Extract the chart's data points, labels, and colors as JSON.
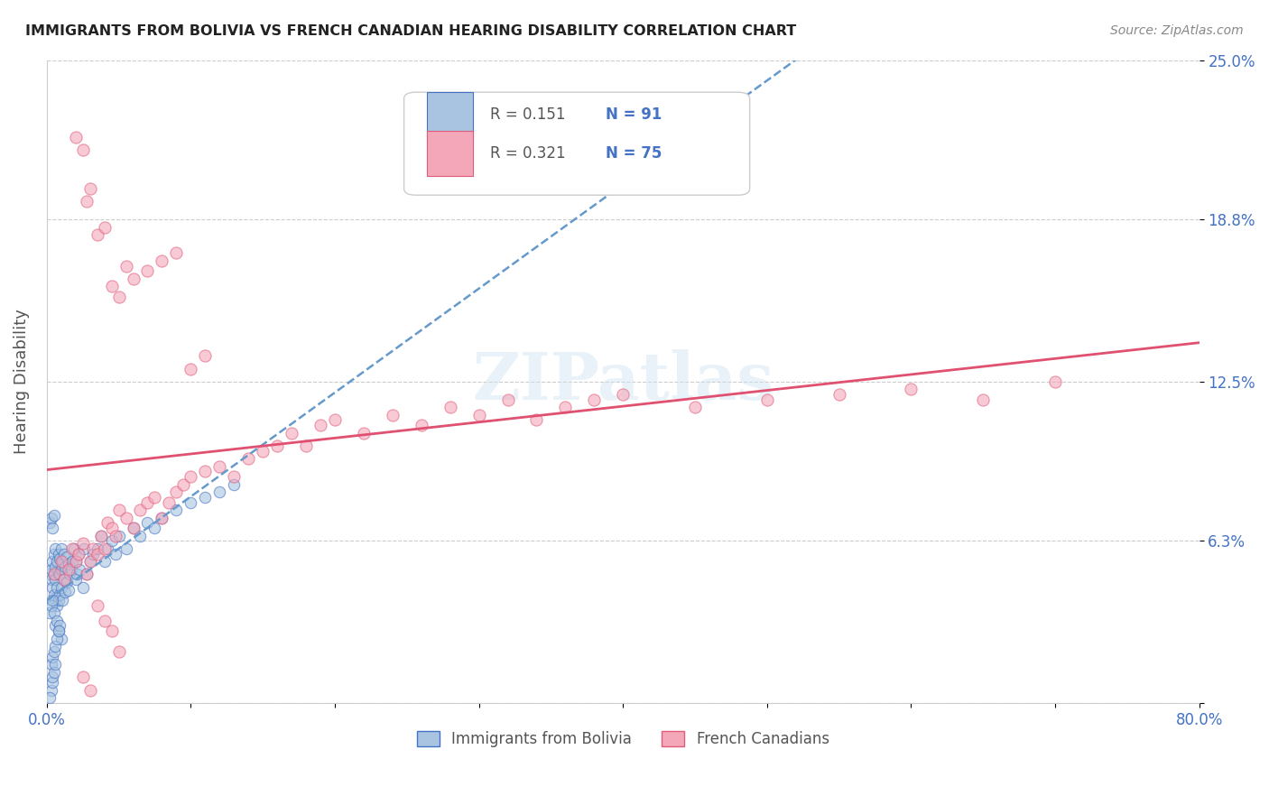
{
  "title": "IMMIGRANTS FROM BOLIVIA VS FRENCH CANADIAN HEARING DISABILITY CORRELATION CHART",
  "source": "Source: ZipAtlas.com",
  "xlabel": "",
  "ylabel": "Hearing Disability",
  "xlim": [
    0.0,
    0.8
  ],
  "ylim": [
    0.0,
    0.25
  ],
  "yticks": [
    0.0,
    0.063,
    0.125,
    0.188,
    0.25
  ],
  "ytick_labels": [
    "",
    "6.3%",
    "12.5%",
    "18.8%",
    "25.0%"
  ],
  "xticks": [
    0.0,
    0.1,
    0.2,
    0.3,
    0.4,
    0.5,
    0.6,
    0.7,
    0.8
  ],
  "xtick_labels": [
    "0.0%",
    "",
    "",
    "",
    "",
    "",
    "",
    "",
    "80.0%"
  ],
  "legend_r1": "R = 0.151",
  "legend_n1": "N = 91",
  "legend_r2": "R = 0.321",
  "legend_n2": "N = 75",
  "blue_color": "#a8c4e0",
  "blue_color_dark": "#4472c4",
  "pink_color": "#f4a7b9",
  "pink_color_dark": "#e05c7a",
  "trendline_blue": "#6699cc",
  "trendline_pink": "#e05070",
  "axis_label_color": "#4472c4",
  "tick_label_color": "#4472c4",
  "watermark": "ZIPatlas",
  "background_color": "#ffffff",
  "bolivia_x": [
    0.002,
    0.003,
    0.003,
    0.004,
    0.004,
    0.005,
    0.005,
    0.005,
    0.006,
    0.006,
    0.006,
    0.006,
    0.007,
    0.007,
    0.007,
    0.008,
    0.008,
    0.008,
    0.009,
    0.009,
    0.009,
    0.01,
    0.01,
    0.01,
    0.011,
    0.011,
    0.012,
    0.012,
    0.013,
    0.013,
    0.014,
    0.014,
    0.015,
    0.015,
    0.016,
    0.017,
    0.018,
    0.019,
    0.02,
    0.02,
    0.021,
    0.022,
    0.023,
    0.025,
    0.026,
    0.028,
    0.03,
    0.032,
    0.035,
    0.038,
    0.04,
    0.042,
    0.045,
    0.048,
    0.05,
    0.055,
    0.06,
    0.065,
    0.07,
    0.075,
    0.08,
    0.09,
    0.1,
    0.11,
    0.12,
    0.13,
    0.002,
    0.003,
    0.004,
    0.005,
    0.006,
    0.007,
    0.008,
    0.009,
    0.01,
    0.002,
    0.003,
    0.004,
    0.005,
    0.003,
    0.004,
    0.005,
    0.006,
    0.007,
    0.008,
    0.003,
    0.004,
    0.004,
    0.005,
    0.006,
    0.002
  ],
  "bolivia_y": [
    0.05,
    0.048,
    0.052,
    0.045,
    0.055,
    0.042,
    0.05,
    0.058,
    0.04,
    0.048,
    0.053,
    0.06,
    0.038,
    0.045,
    0.055,
    0.04,
    0.05,
    0.058,
    0.042,
    0.05,
    0.056,
    0.045,
    0.052,
    0.06,
    0.04,
    0.055,
    0.048,
    0.058,
    0.043,
    0.053,
    0.047,
    0.057,
    0.044,
    0.054,
    0.05,
    0.052,
    0.055,
    0.06,
    0.048,
    0.055,
    0.05,
    0.058,
    0.052,
    0.045,
    0.06,
    0.05,
    0.055,
    0.058,
    0.06,
    0.065,
    0.055,
    0.06,
    0.063,
    0.058,
    0.065,
    0.06,
    0.068,
    0.065,
    0.07,
    0.068,
    0.072,
    0.075,
    0.078,
    0.08,
    0.082,
    0.085,
    0.035,
    0.038,
    0.04,
    0.035,
    0.03,
    0.032,
    0.028,
    0.03,
    0.025,
    0.07,
    0.072,
    0.068,
    0.073,
    0.015,
    0.018,
    0.02,
    0.022,
    0.025,
    0.028,
    0.005,
    0.008,
    0.01,
    0.012,
    0.015,
    0.002
  ],
  "french_x": [
    0.005,
    0.01,
    0.012,
    0.015,
    0.018,
    0.02,
    0.022,
    0.025,
    0.028,
    0.03,
    0.032,
    0.035,
    0.038,
    0.04,
    0.042,
    0.045,
    0.048,
    0.05,
    0.055,
    0.06,
    0.065,
    0.07,
    0.075,
    0.08,
    0.085,
    0.09,
    0.095,
    0.1,
    0.11,
    0.12,
    0.13,
    0.14,
    0.15,
    0.16,
    0.17,
    0.18,
    0.19,
    0.2,
    0.22,
    0.24,
    0.26,
    0.28,
    0.3,
    0.32,
    0.34,
    0.36,
    0.38,
    0.4,
    0.45,
    0.5,
    0.55,
    0.6,
    0.65,
    0.7,
    0.028,
    0.035,
    0.04,
    0.045,
    0.05,
    0.055,
    0.06,
    0.07,
    0.08,
    0.09,
    0.1,
    0.11,
    0.02,
    0.025,
    0.03,
    0.035,
    0.04,
    0.045,
    0.05,
    0.025,
    0.03
  ],
  "french_y": [
    0.05,
    0.055,
    0.048,
    0.052,
    0.06,
    0.055,
    0.058,
    0.062,
    0.05,
    0.055,
    0.06,
    0.058,
    0.065,
    0.06,
    0.07,
    0.068,
    0.065,
    0.075,
    0.072,
    0.068,
    0.075,
    0.078,
    0.08,
    0.072,
    0.078,
    0.082,
    0.085,
    0.088,
    0.09,
    0.092,
    0.088,
    0.095,
    0.098,
    0.1,
    0.105,
    0.1,
    0.108,
    0.11,
    0.105,
    0.112,
    0.108,
    0.115,
    0.112,
    0.118,
    0.11,
    0.115,
    0.118,
    0.12,
    0.115,
    0.118,
    0.12,
    0.122,
    0.118,
    0.125,
    0.195,
    0.182,
    0.185,
    0.162,
    0.158,
    0.17,
    0.165,
    0.168,
    0.172,
    0.175,
    0.13,
    0.135,
    0.22,
    0.215,
    0.2,
    0.038,
    0.032,
    0.028,
    0.02,
    0.01,
    0.005
  ]
}
